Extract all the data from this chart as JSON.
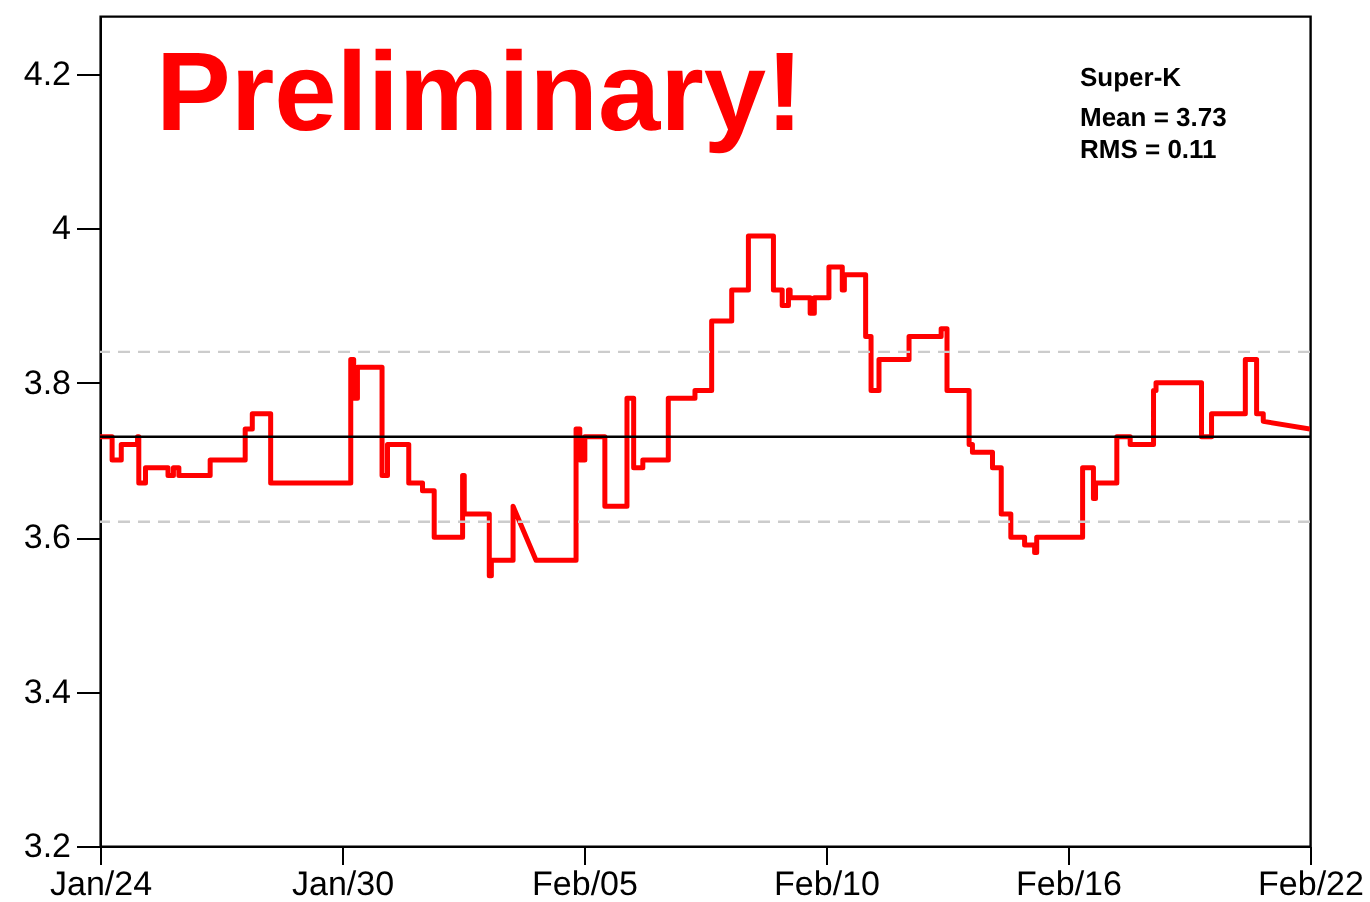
{
  "chart_data": {
    "type": "line",
    "x": [
      "--01-24T12:00",
      "--01-24T18:58",
      "--01-24T18:58",
      "--01-25T00:14",
      "--01-25T00:14",
      "--01-25T09:36",
      "--01-25T09:36",
      "--01-25T10:19",
      "--01-25T10:19",
      "--01-25T14:10",
      "--01-25T14:10",
      "--01-26T03:07",
      "--01-26T03:07",
      "--01-26T06:14",
      "--01-26T06:14",
      "--01-26T09:22",
      "--01-26T09:22",
      "--01-27T03:22",
      "--01-27T03:22",
      "--01-27T23:31",
      "--01-27T23:31",
      "--01-28T03:36",
      "--01-28T03:36",
      "--01-28T14:10",
      "--01-28T14:10",
      "--01-30T12:14",
      "--01-30T12:14",
      "--01-30T13:55",
      "--01-30T13:55",
      "--01-30T16:05",
      "--01-30T16:05",
      "--01-31T06:14",
      "--01-31T06:14",
      "--01-31T09:22",
      "--01-31T09:22",
      "--01-31T21:36",
      "--01-31T21:36",
      "--02-01T05:31",
      "--02-01T05:31",
      "--02-01T12:14",
      "--02-01T12:14",
      "--02-02T04:34",
      "--02-02T04:34",
      "--02-02T05:31",
      "--02-02T05:31",
      "--02-02T19:55",
      "--02-02T19:55",
      "--02-02T21:07",
      "--02-02T21:07",
      "--02-03T09:36",
      "--02-03T09:36",
      "--02-03T22:48",
      "--02-04T21:50",
      "--02-04T21:50",
      "--02-05T00:00",
      "--02-05T00:00",
      "--02-05T02:53",
      "--02-05T02:53",
      "--02-05T14:24",
      "--02-05T14:24",
      "--02-06T03:07",
      "--02-06T03:07",
      "--02-06T06:58",
      "--02-06T06:58",
      "--02-06T12:14",
      "--02-06T12:14",
      "--02-07T02:53",
      "--02-07T02:53",
      "--02-07T18:14",
      "--02-07T18:14",
      "--02-08T03:50",
      "--02-08T03:50",
      "--02-08T15:22",
      "--02-08T15:22",
      "--02-09T00:58",
      "--02-09T00:58",
      "--02-09T15:22",
      "--02-09T15:22",
      "--02-09T20:24",
      "--02-09T20:24",
      "--02-10T00:00",
      "--02-10T00:00",
      "--02-10T00:58",
      "--02-10T00:58",
      "--02-10T12:29",
      "--02-10T12:29",
      "--02-10T14:53",
      "--02-10T14:53",
      "--02-10T23:17",
      "--02-10T23:17",
      "--02-11T06:58",
      "--02-11T06:58",
      "--02-11T08:10",
      "--02-11T08:10",
      "--02-11T20:24",
      "--02-11T20:24",
      "--02-11T23:31",
      "--02-11T23:31",
      "--02-12T04:05",
      "--02-12T04:05",
      "--02-12T21:22",
      "--02-12T21:22",
      "--02-13T15:50",
      "--02-13T15:50",
      "--02-13T19:12",
      "--02-13T19:12",
      "--02-13T23:31",
      "--02-13T23:31",
      "--02-14T07:55",
      "--02-14T07:55",
      "--02-14T09:50",
      "--02-14T09:50",
      "--02-14T21:22",
      "--02-14T21:22",
      "--02-15T02:24",
      "--02-15T02:24",
      "--02-15T07:55",
      "--02-15T07:55",
      "--02-15T15:50",
      "--02-15T15:50",
      "--02-15T21:36",
      "--02-15T21:36",
      "--02-15T22:48",
      "--02-15T22:48",
      "--02-17T01:12",
      "--02-17T01:12",
      "--02-17T07:26",
      "--02-17T07:26",
      "--02-17T08:38",
      "--02-17T08:38",
      "--02-17T20:53",
      "--02-17T20:53",
      "--02-18T04:34",
      "--02-18T04:34",
      "--02-18T18:00",
      "--02-18T18:00",
      "--02-18T19:26",
      "--02-18T19:26",
      "--02-19T21:36",
      "--02-19T21:36",
      "--02-20T03:22",
      "--02-20T03:22",
      "--02-20T22:48",
      "--02-20T22:48",
      "--02-21T05:17",
      "--02-21T05:17",
      "--02-21T09:07",
      "--02-21T09:07",
      "--02-22T12:00"
    ],
    "series": [
      {
        "color": "#ff0000",
        "values": [
          3.73,
          3.73,
          3.7,
          3.7,
          3.72,
          3.72,
          3.73,
          3.73,
          3.67,
          3.67,
          3.69,
          3.69,
          3.68,
          3.68,
          3.69,
          3.69,
          3.68,
          3.68,
          3.7,
          3.7,
          3.74,
          3.74,
          3.76,
          3.76,
          3.67,
          3.67,
          3.83,
          3.83,
          3.78,
          3.78,
          3.82,
          3.82,
          3.68,
          3.68,
          3.72,
          3.72,
          3.67,
          3.67,
          3.66,
          3.66,
          3.6,
          3.6,
          3.68,
          3.68,
          3.63,
          3.63,
          3.55,
          3.55,
          3.57,
          3.57,
          3.64,
          3.57,
          3.57,
          3.74,
          3.74,
          3.7,
          3.7,
          3.73,
          3.73,
          3.64,
          3.64,
          3.78,
          3.78,
          3.69,
          3.69,
          3.7,
          3.7,
          3.78,
          3.78,
          3.79,
          3.79,
          3.88,
          3.88,
          3.92,
          3.92,
          3.99,
          3.99,
          3.92,
          3.92,
          3.9,
          3.9,
          3.92,
          3.92,
          3.91,
          3.91,
          3.89,
          3.89,
          3.91,
          3.91,
          3.95,
          3.95,
          3.92,
          3.92,
          3.94,
          3.94,
          3.86,
          3.86,
          3.79,
          3.79,
          3.83,
          3.83,
          3.86,
          3.86,
          3.87,
          3.87,
          3.79,
          3.79,
          3.79,
          3.79,
          3.72,
          3.72,
          3.71,
          3.71,
          3.69,
          3.69,
          3.63,
          3.63,
          3.6,
          3.6,
          3.59,
          3.59,
          3.58,
          3.58,
          3.6,
          3.6,
          3.69,
          3.69,
          3.65,
          3.65,
          3.67,
          3.67,
          3.73,
          3.73,
          3.72,
          3.72,
          3.79,
          3.79,
          3.8,
          3.8,
          3.73,
          3.73,
          3.76,
          3.76,
          3.83,
          3.83,
          3.76,
          3.76,
          3.75,
          3.74
        ]
      }
    ],
    "xlim": [
      "--01-24T12:00",
      "--02-22T12:00"
    ],
    "xticks": [
      {
        "value": "--01-24T12:00",
        "label": "Jan/24"
      },
      {
        "value": "--01-30T07:12",
        "label": "Jan/30"
      },
      {
        "value": "--02-05T02:24",
        "label": "Feb/05"
      },
      {
        "value": "--02-10T21:36",
        "label": "Feb/10"
      },
      {
        "value": "--02-16T16:48",
        "label": "Feb/16"
      },
      {
        "value": "--02-22T12:00",
        "label": "Feb/22"
      }
    ],
    "ylim": [
      3.2,
      4.275
    ],
    "yticks": [
      3.2,
      3.4,
      3.6,
      3.8,
      {
        "value": 4,
        "label": "4"
      },
      4.2
    ],
    "ref_lines": [
      {
        "axis": "y",
        "value": 3.73,
        "color": "#000000"
      },
      {
        "axis": "y",
        "value": 3.84,
        "color": "#cccccc",
        "line_style": "dashed"
      },
      {
        "axis": "y",
        "value": 3.62,
        "color": "#cccccc",
        "line_style": "dashed"
      }
    ],
    "annotations": [
      "Preliminary!",
      "Super-K",
      "Mean = 3.73",
      "RMS = 0.11"
    ]
  }
}
